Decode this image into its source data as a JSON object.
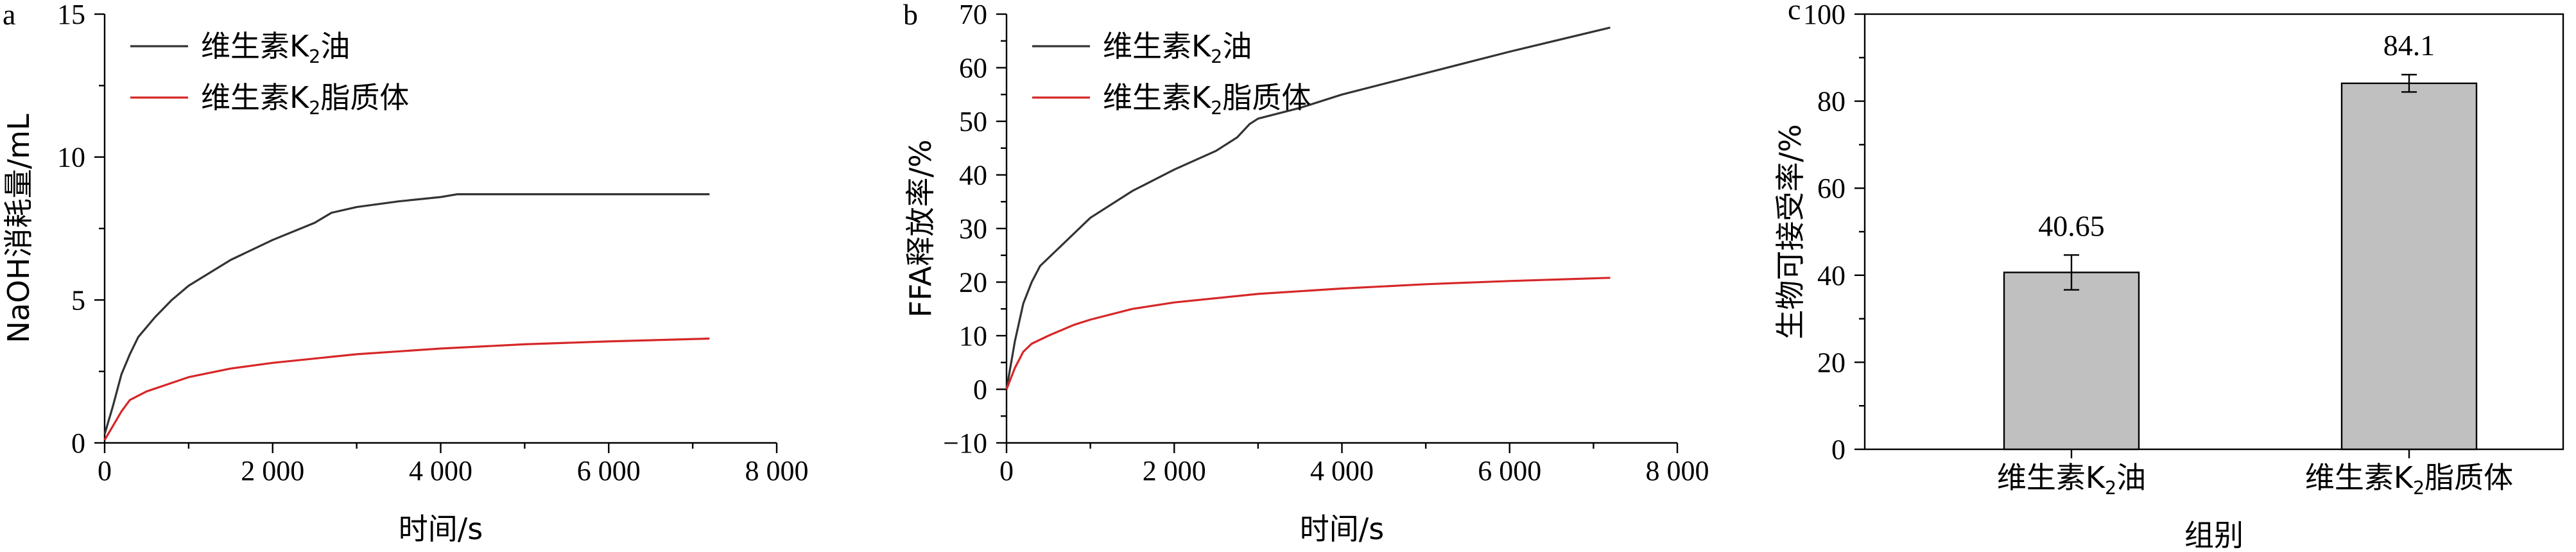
{
  "chart_data": [
    {
      "panel": "a",
      "type": "line",
      "xlabel": "时间/s",
      "ylabel": "NaOH消耗量/mL",
      "xlim": [
        0,
        8000
      ],
      "ylim": [
        0,
        15
      ],
      "xticks": [
        0,
        2000,
        4000,
        6000,
        8000
      ],
      "xtick_labels": [
        "0",
        "2 000",
        "4 000",
        "6 000",
        "8 000"
      ],
      "yticks": [
        0,
        5,
        10,
        15
      ],
      "ytick_labels": [
        "0",
        "5",
        "10",
        "15"
      ],
      "grid": false,
      "legend_position": "top-left",
      "series": [
        {
          "name": "维生素K₂油",
          "color": "#333333",
          "x": [
            0,
            100,
            200,
            300,
            400,
            600,
            800,
            1000,
            1500,
            2000,
            2500,
            2700,
            3000,
            3500,
            4000,
            4200,
            5000,
            6000,
            7200
          ],
          "y": [
            0.3,
            1.3,
            2.4,
            3.1,
            3.7,
            4.4,
            5.0,
            5.5,
            6.4,
            7.1,
            7.7,
            8.05,
            8.25,
            8.45,
            8.6,
            8.7,
            8.7,
            8.7,
            8.7
          ]
        },
        {
          "name": "维生素K₂脂质体",
          "color": "#d62728",
          "x": [
            0,
            100,
            200,
            300,
            500,
            800,
            1000,
            1500,
            2000,
            3000,
            4000,
            5000,
            6000,
            7200
          ],
          "y": [
            0.1,
            0.6,
            1.1,
            1.5,
            1.8,
            2.1,
            2.3,
            2.6,
            2.8,
            3.1,
            3.3,
            3.45,
            3.55,
            3.65
          ]
        }
      ]
    },
    {
      "panel": "b",
      "type": "line",
      "xlabel": "时间/s",
      "ylabel": "FFA释放率/%",
      "xlim": [
        0,
        8000
      ],
      "ylim": [
        -10,
        70
      ],
      "xticks": [
        0,
        2000,
        4000,
        6000,
        8000
      ],
      "xtick_labels": [
        "0",
        "2 000",
        "4 000",
        "6 000",
        "8 000"
      ],
      "yticks": [
        -10,
        0,
        10,
        20,
        30,
        40,
        50,
        60,
        70
      ],
      "ytick_labels": [
        "−10",
        "0",
        "10",
        "20",
        "30",
        "40",
        "50",
        "60",
        "70"
      ],
      "grid": false,
      "legend_position": "top-left",
      "series": [
        {
          "name": "维生素K₂油",
          "color": "#333333",
          "x": [
            0,
            100,
            200,
            300,
            400,
            600,
            800,
            1000,
            1500,
            2000,
            2500,
            2750,
            2900,
            3000,
            3500,
            4000,
            5000,
            6000,
            7200
          ],
          "y": [
            0,
            9,
            16,
            20,
            23,
            26,
            29,
            32,
            37,
            41,
            44.5,
            47,
            49.5,
            50.5,
            52.5,
            55,
            59,
            63,
            67.5
          ]
        },
        {
          "name": "维生素K₂脂质体",
          "color": "#d62728",
          "x": [
            0,
            100,
            200,
            300,
            500,
            800,
            1000,
            1500,
            2000,
            3000,
            4000,
            5000,
            6000,
            7200
          ],
          "y": [
            0,
            4,
            7,
            8.5,
            10,
            12,
            13,
            15,
            16.2,
            17.8,
            18.8,
            19.6,
            20.2,
            20.8
          ]
        }
      ]
    },
    {
      "panel": "c",
      "type": "bar",
      "xlabel": "组别",
      "ylabel": "生物可接受率/%",
      "ylim": [
        0,
        100
      ],
      "yticks": [
        0,
        20,
        40,
        60,
        80,
        100
      ],
      "ytick_labels": [
        "0",
        "20",
        "40",
        "60",
        "80",
        "100"
      ],
      "grid": false,
      "bar_color": "#c0c0c0",
      "categories": [
        "维生素K₂油",
        "维生素K₂脂质体"
      ],
      "values": [
        40.65,
        84.1
      ],
      "value_labels": [
        "40.65",
        "84.1"
      ],
      "error": [
        4.0,
        2.0
      ]
    }
  ]
}
